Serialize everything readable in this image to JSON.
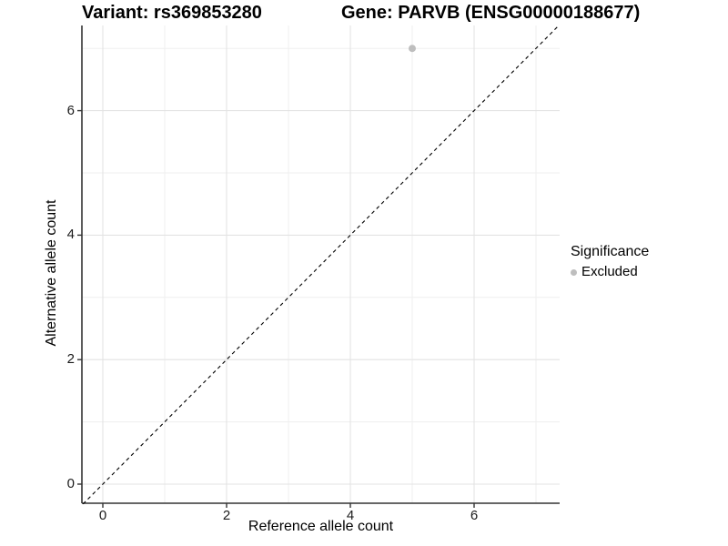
{
  "chart_data": {
    "type": "scatter",
    "titles": {
      "left": "Variant: rs369853280",
      "right": "Gene: PARVB (ENSG00000188677)"
    },
    "xlabel": "Reference allele count",
    "ylabel": "Alternative allele count",
    "x_ticks": [
      0,
      2,
      4,
      6
    ],
    "y_ticks": [
      0,
      2,
      4,
      6
    ],
    "x_minor": [
      1,
      3,
      5,
      7
    ],
    "y_minor": [
      1,
      3,
      5,
      7
    ],
    "xlim": [
      -0.35,
      7.38
    ],
    "ylim": [
      -0.32,
      7.37
    ],
    "grid": true,
    "points": [
      {
        "x": 5,
        "y": 7,
        "series": "Excluded"
      }
    ],
    "reference_line": {
      "kind": "identity",
      "slope": 1,
      "intercept": 0,
      "style": "dashed"
    },
    "legend": {
      "title": "Significance",
      "position": "right",
      "entries": [
        {
          "label": "Excluded",
          "color": "#bebebe"
        }
      ]
    }
  },
  "colors": {
    "background": "#ffffff",
    "grid_major": "#e3e3e3",
    "grid_minor": "#efefef",
    "axis_line": "#333333",
    "tick_mark": "#333333",
    "tick_text": "#1a1a1a",
    "point": "#bebebe",
    "reference_line": "#000000"
  }
}
